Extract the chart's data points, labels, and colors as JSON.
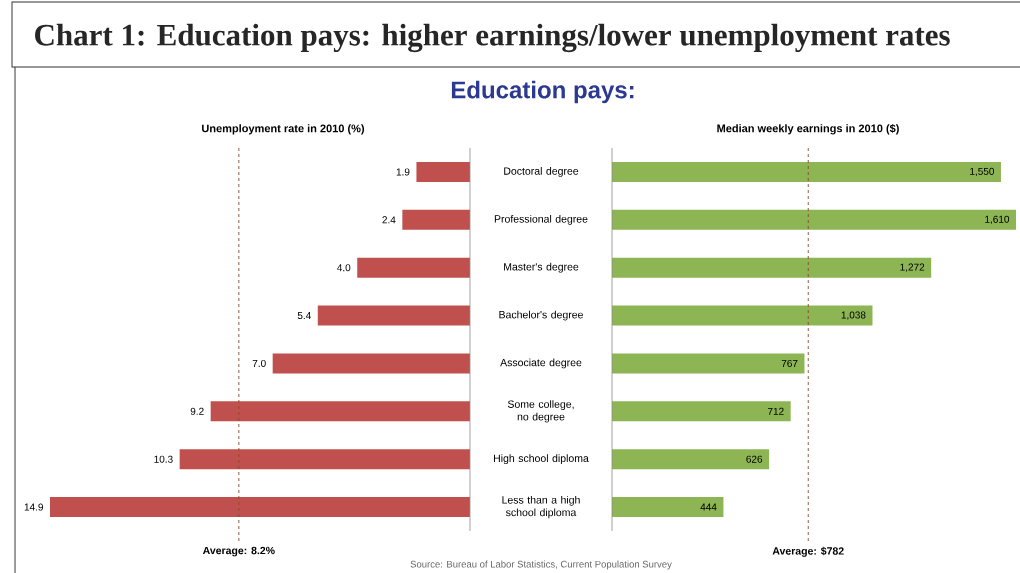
{
  "chart_data": [
    {
      "type": "bar",
      "orientation": "horizontal",
      "title": "Unemployment rate in 2010 (%)",
      "categories": [
        "Doctoral degree",
        "Professional degree",
        "Master's degree",
        "Bachelor's degree",
        "Associate degree",
        "Some college, no degree",
        "High school diploma",
        "Less than a high school diploma"
      ],
      "values": [
        1.9,
        2.4,
        4.0,
        5.4,
        7.0,
        9.2,
        10.3,
        14.9
      ],
      "value_labels": [
        "1.9",
        "2.4",
        "4.0",
        "5.4",
        "7.0",
        "9.2",
        "10.3",
        "14.9"
      ],
      "color": "#c0504d",
      "ref_lines": [
        {
          "axis": "x",
          "value": 8.2,
          "label": "Average: 8.2%",
          "color": "#8b4a2e",
          "line_style": "dashed"
        }
      ],
      "tick_labels": "y",
      "annotations": [
        "Chart 1: Education pays: higher earnings/lower unemployment rates",
        "Education pays:"
      ]
    },
    {
      "type": "bar",
      "orientation": "horizontal",
      "title": "Median weekly earnings in 2010 ($)",
      "categories": [
        null,
        null,
        null,
        null,
        null,
        null,
        null,
        null
      ],
      "values": [
        1550,
        1610,
        1272,
        1038,
        767,
        712,
        626,
        444
      ],
      "value_labels": [
        "1,550",
        "1,610",
        "1,272",
        "1,038",
        "767",
        "712",
        "626",
        "444"
      ],
      "color": "#8db554",
      "ref_lines": [
        {
          "axis": "x",
          "value": 782,
          "label": "Average: $782",
          "color": "#8b4a2e",
          "line_style": "dashed"
        }
      ],
      "annotations": [
        "Source: Bureau of Labor Statistics, Current Population Survey"
      ]
    }
  ]
}
